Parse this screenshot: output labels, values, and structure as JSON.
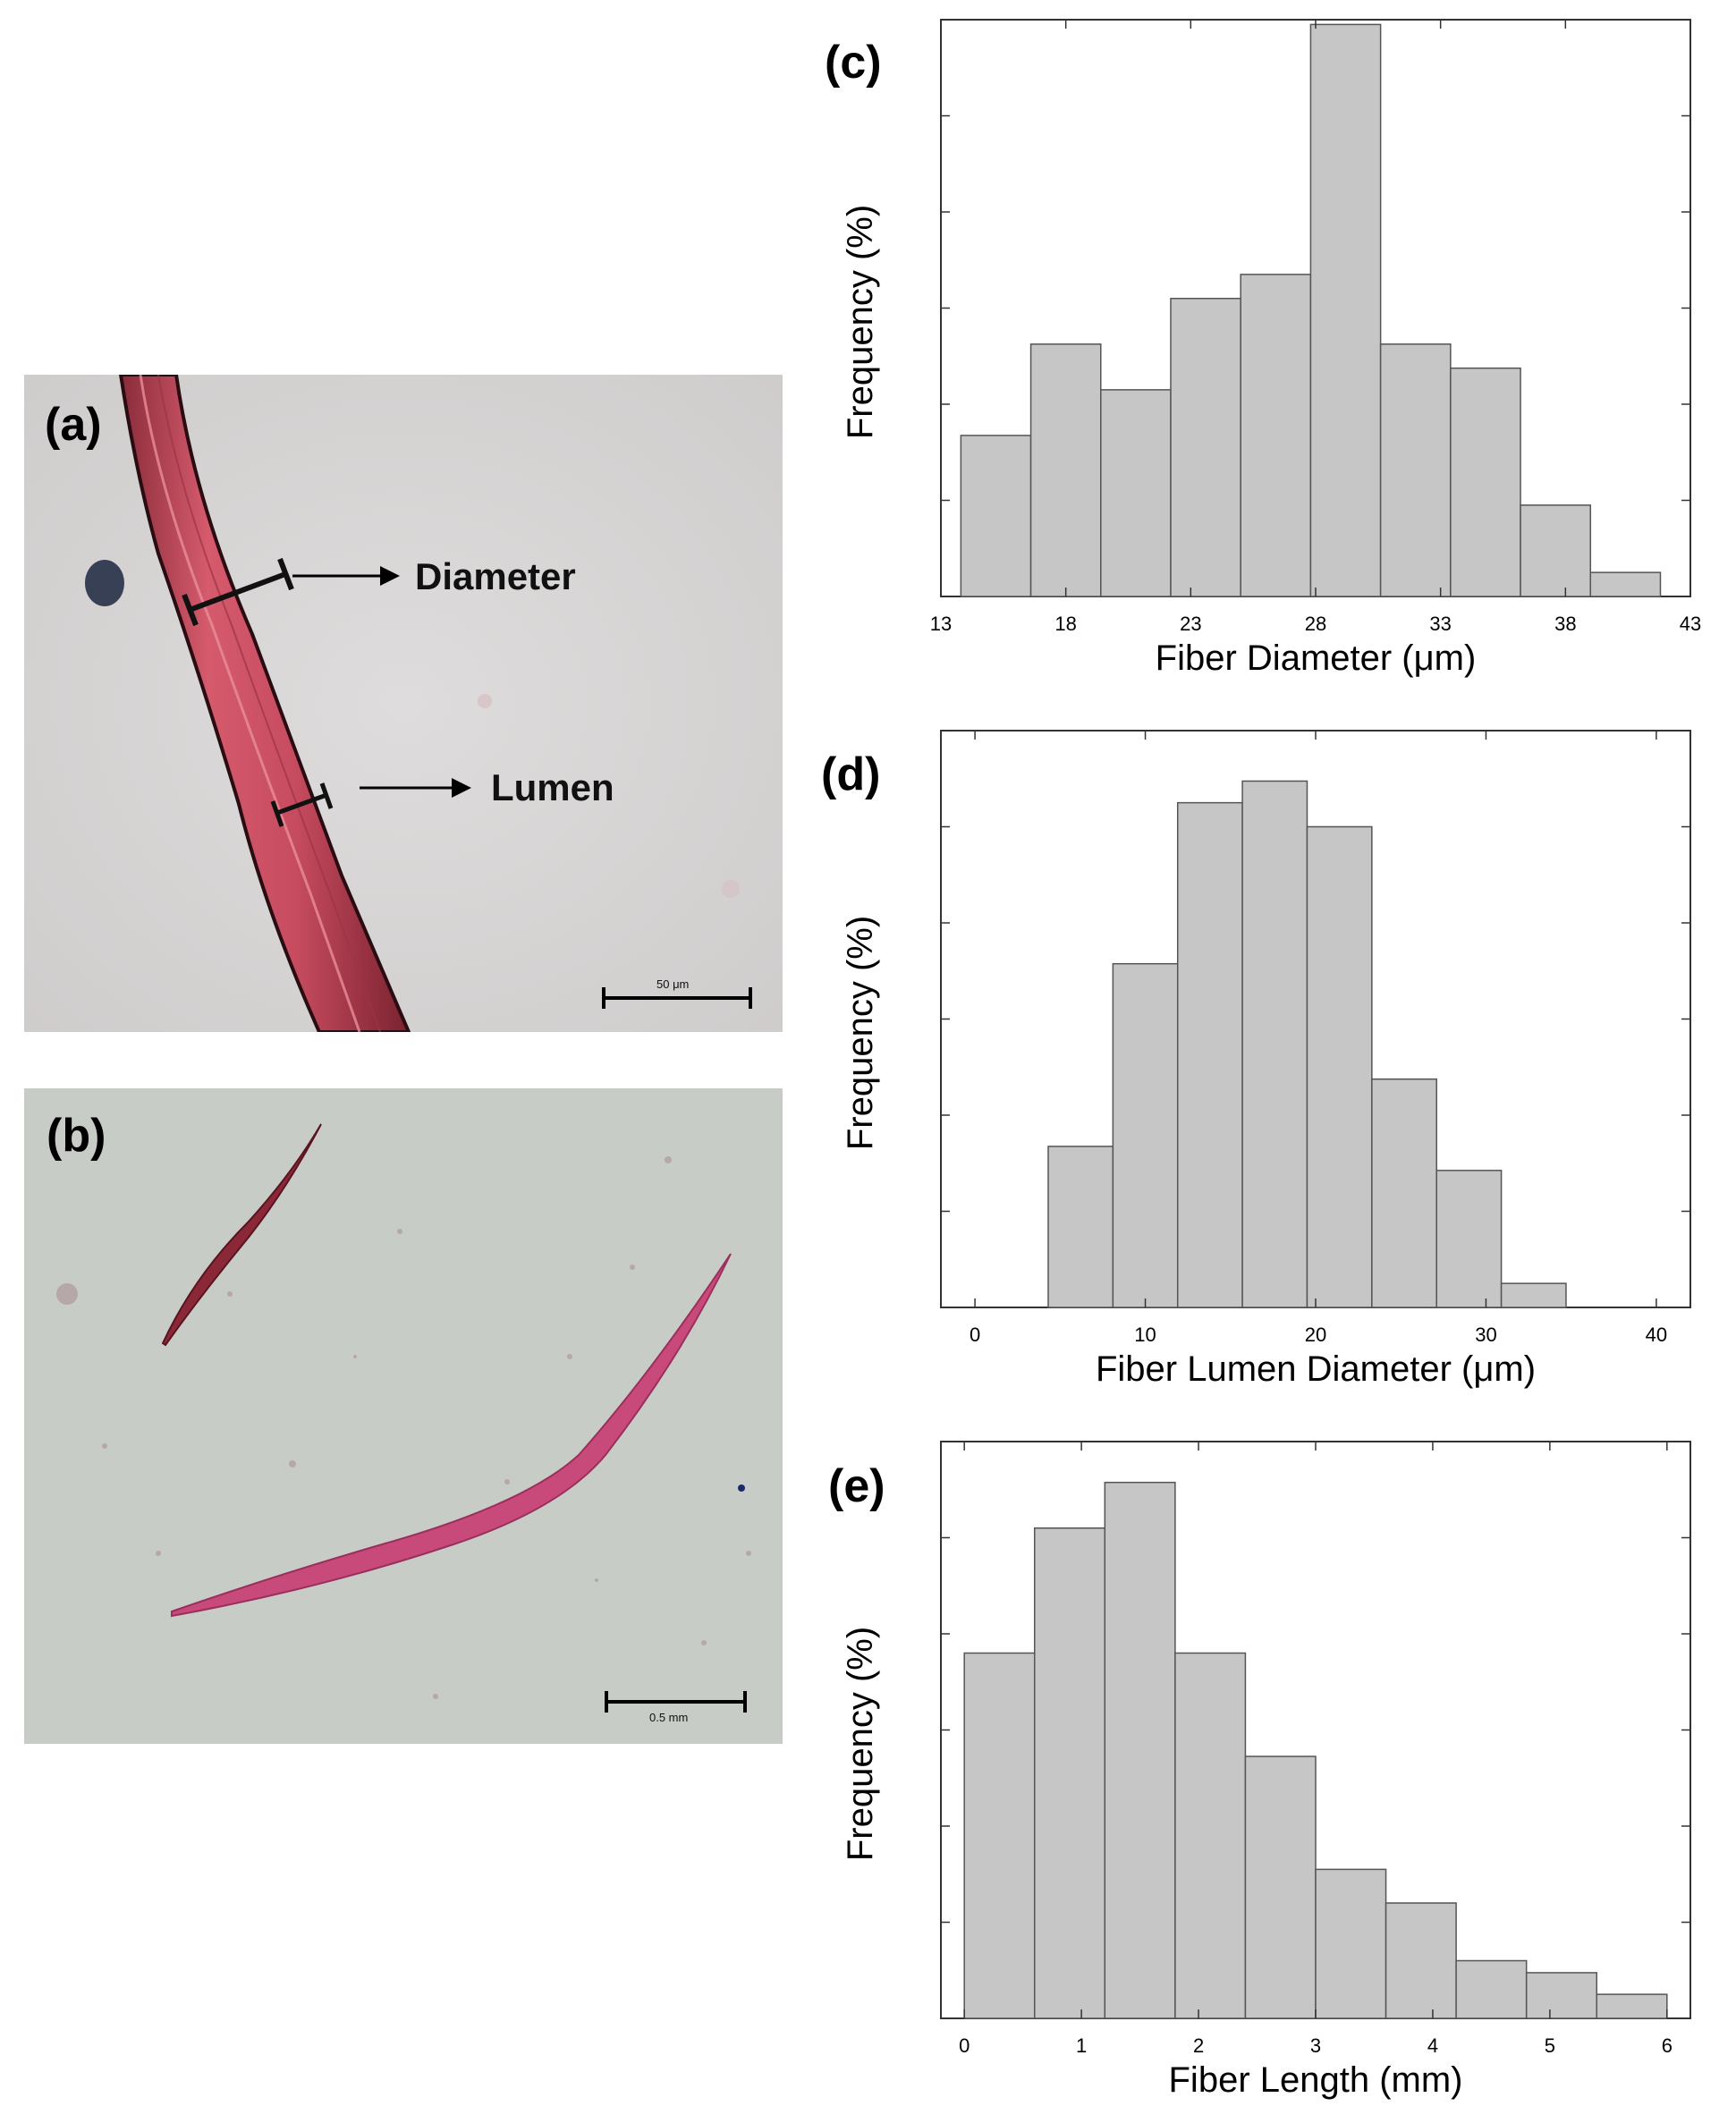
{
  "panels": {
    "a": {
      "label": "(a)",
      "annotations": {
        "diameter": "Diameter",
        "lumen": "Lumen"
      },
      "scale_bar": "50 μm"
    },
    "b": {
      "label": "(b)",
      "scale_bar": "0.5 mm"
    },
    "c": {
      "label": "(c)"
    },
    "d": {
      "label": "(d)"
    },
    "e": {
      "label": "(e)"
    }
  },
  "colors": {
    "bar_fill": "#c6c6c6",
    "bar_stroke": "#555555",
    "fiber": "#c2485a"
  },
  "chart_data": [
    {
      "type": "bar",
      "panel": "(c)",
      "xlabel": "Fiber Diameter (μm)",
      "ylabel": "Frequency (%)",
      "xlim": [
        13,
        43
      ],
      "ylim": [
        0,
        24
      ],
      "xticks": [
        13,
        18,
        23,
        28,
        33,
        38,
        43
      ],
      "yticks": [
        0,
        4,
        8,
        12,
        16,
        20,
        24
      ],
      "bins": [
        [
          13.8,
          16.6
        ],
        [
          16.6,
          19.4
        ],
        [
          19.4,
          22.2
        ],
        [
          22.2,
          25.0
        ],
        [
          25.0,
          27.8
        ],
        [
          27.8,
          30.6
        ],
        [
          30.6,
          33.4
        ],
        [
          33.4,
          36.2
        ],
        [
          36.2,
          39.0
        ],
        [
          39.0,
          41.8
        ]
      ],
      "values": [
        6.7,
        10.5,
        8.6,
        12.4,
        13.4,
        23.8,
        10.5,
        9.5,
        3.8,
        1.0
      ]
    },
    {
      "type": "bar",
      "panel": "(d)",
      "xlabel": "Fiber Lumen Diameter (μm)",
      "ylabel": "Frequency (%)",
      "xlim": [
        -2,
        42
      ],
      "ylim": [
        0,
        24
      ],
      "xticks": [
        0,
        10,
        20,
        30,
        40
      ],
      "yticks": [
        0,
        4,
        8,
        12,
        16,
        20,
        24
      ],
      "bins": [
        [
          4.3,
          8.1
        ],
        [
          8.1,
          11.9
        ],
        [
          11.9,
          15.7
        ],
        [
          15.7,
          19.5
        ],
        [
          19.5,
          23.3
        ],
        [
          23.3,
          27.1
        ],
        [
          27.1,
          30.9
        ],
        [
          30.9,
          34.7
        ]
      ],
      "values": [
        6.7,
        14.3,
        21.0,
        21.9,
        20.0,
        9.5,
        5.7,
        1.0
      ]
    },
    {
      "type": "bar",
      "panel": "(e)",
      "xlabel": "Fiber Length (mm)",
      "ylabel": "Frequency (%)",
      "xlim": [
        -0.2,
        6.2
      ],
      "ylim": [
        0,
        24
      ],
      "xticks": [
        0,
        1,
        2,
        3,
        4,
        5,
        6
      ],
      "yticks": [
        0,
        4,
        8,
        12,
        16,
        20,
        24
      ],
      "bins": [
        [
          0.0,
          0.6
        ],
        [
          0.6,
          1.2
        ],
        [
          1.2,
          1.8
        ],
        [
          1.8,
          2.4
        ],
        [
          2.4,
          3.0
        ],
        [
          3.0,
          3.6
        ],
        [
          3.6,
          4.2
        ],
        [
          4.2,
          4.8
        ],
        [
          4.8,
          5.4
        ],
        [
          5.4,
          6.0
        ]
      ],
      "values": [
        15.2,
        20.4,
        22.3,
        15.2,
        10.9,
        6.2,
        4.8,
        2.4,
        1.9,
        1.0
      ]
    }
  ]
}
